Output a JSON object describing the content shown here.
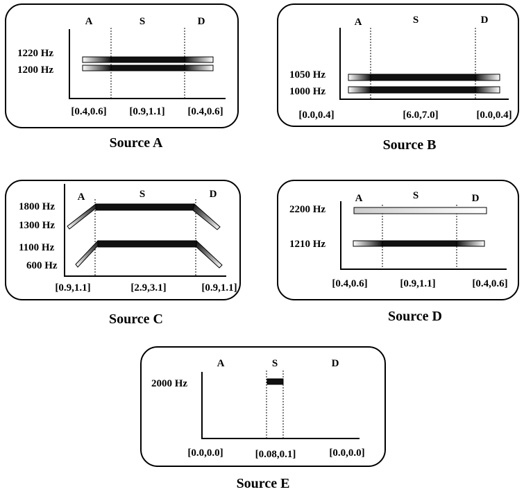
{
  "panels": [
    {
      "id": "a",
      "caption": "Source A",
      "columns": [
        "A",
        "S",
        "D"
      ],
      "freqs": [
        "1220 Hz",
        "1200 Hz"
      ],
      "intervals": [
        "[0.4,0.6]",
        "[0.9,1.1]",
        "[0.4,0.6]"
      ]
    },
    {
      "id": "b",
      "caption": "Source B",
      "columns": [
        "A",
        "S",
        "D"
      ],
      "freqs": [
        "1050 Hz",
        "1000 Hz"
      ],
      "intervals": [
        "[0.0,0.4]",
        "[6.0,7.0]",
        "[0.0,0.4]"
      ]
    },
    {
      "id": "c",
      "caption": "Source C",
      "columns": [
        "A",
        "S",
        "D"
      ],
      "freqs": [
        "1800 Hz",
        "1300 Hz",
        "1100 Hz",
        "600 Hz"
      ],
      "intervals": [
        "[0.9,1.1]",
        "[2.9,3.1]",
        "[0.9,1.1]"
      ]
    },
    {
      "id": "d",
      "caption": "Source D",
      "columns": [
        "A",
        "S",
        "D"
      ],
      "freqs": [
        "2200 Hz",
        "1210 Hz"
      ],
      "intervals": [
        "[0.4,0.6]",
        "[0.9,1.1]",
        "[0.4,0.6]"
      ]
    },
    {
      "id": "e",
      "caption": "Source E",
      "columns": [
        "A",
        "S",
        "D"
      ],
      "freqs": [
        "2000 Hz"
      ],
      "intervals": [
        "[0.0,0.0]",
        "[0.08,0.1]",
        "[0.0,0.0]"
      ]
    }
  ]
}
